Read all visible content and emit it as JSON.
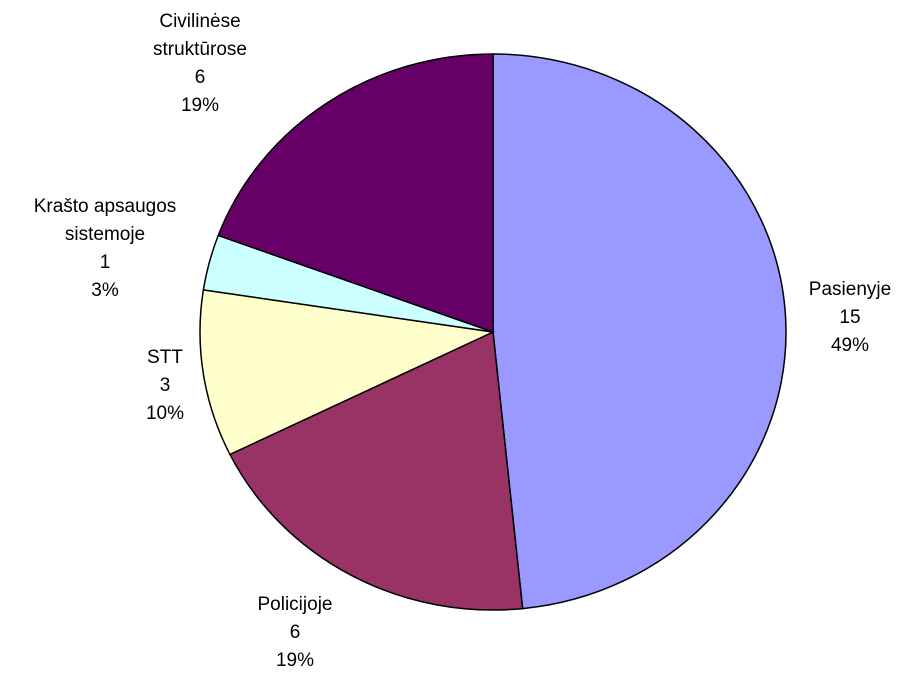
{
  "chart_data": {
    "type": "pie",
    "categories": [
      "Pasienyje",
      "Policijoje",
      "STT",
      "Krašto apsaugos sistemoje",
      "Civilinėse struktūrose"
    ],
    "values": [
      15,
      6,
      3,
      1,
      6
    ],
    "value_labels": [
      "15",
      "6",
      "3",
      "1",
      "6"
    ],
    "percent_labels": [
      "49%",
      "19%",
      "10%",
      "3%",
      "19%"
    ],
    "colors": [
      "#9999ff",
      "#993366",
      "#ffffcc",
      "#ccffff",
      "#660066"
    ]
  }
}
